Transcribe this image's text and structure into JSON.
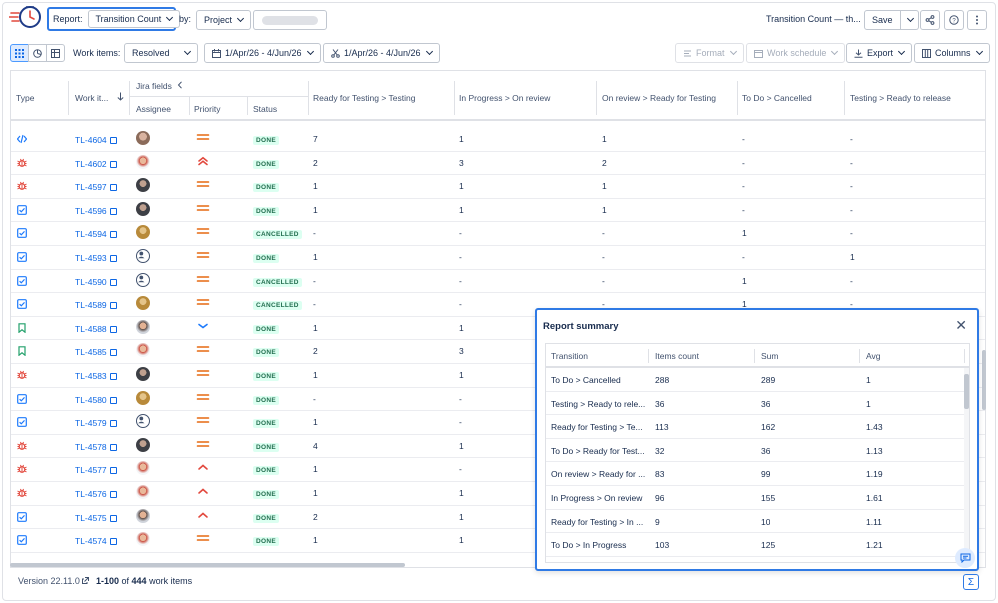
{
  "toolbar": {
    "report_label": "Report:",
    "report_value": "Transition Count",
    "by_label": "by:",
    "project_value": "Project",
    "report_title": "Transition Count — th...",
    "save_label": "Save",
    "work_items_label": "Work items:",
    "resolved_value": "Resolved",
    "date_range_1": "1/Apr/26 - 4/Jun/26",
    "date_range_2": "1/Apr/26 - 4/Jun/26",
    "format_label": "Format",
    "schedule_label": "Work schedule",
    "export_label": "Export",
    "columns_label": "Columns"
  },
  "table": {
    "headers": {
      "type": "Type",
      "work_item": "Work it...",
      "jira_fields": "Jira fields",
      "assignee": "Assignee",
      "priority": "Priority",
      "status": "Status",
      "t1": "Ready for Testing > Testing",
      "t2": "In Progress > On review",
      "t3": "On review > Ready for Testing",
      "t4": "To Do > Cancelled",
      "t5": "Testing > Ready to release"
    },
    "rows": [
      {
        "type": "code",
        "key": "TL-4604",
        "av": "p1",
        "pr": "medium",
        "status": "DONE",
        "v": [
          "7",
          "1",
          "1",
          "-",
          "-"
        ]
      },
      {
        "type": "bug",
        "key": "TL-4602",
        "av": "p2",
        "pr": "highest",
        "status": "DONE",
        "v": [
          "2",
          "3",
          "2",
          "-",
          "-"
        ]
      },
      {
        "type": "bug",
        "key": "TL-4597",
        "av": "p3",
        "pr": "medium",
        "status": "DONE",
        "v": [
          "1",
          "1",
          "1",
          "-",
          "-"
        ]
      },
      {
        "type": "task",
        "key": "TL-4596",
        "av": "p3",
        "pr": "medium",
        "status": "DONE",
        "v": [
          "1",
          "1",
          "1",
          "-",
          "-"
        ]
      },
      {
        "type": "task",
        "key": "TL-4594",
        "av": "p4",
        "pr": "medium",
        "status": "CANCELLED",
        "v": [
          "-",
          "-",
          "-",
          "1",
          "-"
        ]
      },
      {
        "type": "task",
        "key": "TL-4593",
        "av": "gen",
        "pr": "medium",
        "status": "DONE",
        "v": [
          "1",
          "-",
          "-",
          "-",
          "1"
        ]
      },
      {
        "type": "task",
        "key": "TL-4590",
        "av": "gen",
        "pr": "medium",
        "status": "CANCELLED",
        "v": [
          "-",
          "-",
          "-",
          "1",
          "-"
        ]
      },
      {
        "type": "task",
        "key": "TL-4589",
        "av": "p4",
        "pr": "medium",
        "status": "CANCELLED",
        "v": [
          "-",
          "-",
          "-",
          "1",
          "-"
        ]
      },
      {
        "type": "story",
        "key": "TL-4588",
        "av": "p5",
        "pr": "low",
        "status": "DONE",
        "v": [
          "1",
          "1",
          "",
          "",
          ""
        ]
      },
      {
        "type": "story",
        "key": "TL-4585",
        "av": "p2",
        "pr": "medium",
        "status": "DONE",
        "v": [
          "2",
          "3",
          "",
          "",
          ""
        ]
      },
      {
        "type": "bug",
        "key": "TL-4583",
        "av": "p3",
        "pr": "medium",
        "status": "DONE",
        "v": [
          "1",
          "1",
          "",
          "",
          ""
        ]
      },
      {
        "type": "task",
        "key": "TL-4580",
        "av": "p4",
        "pr": "medium",
        "status": "DONE",
        "v": [
          "-",
          "-",
          "",
          "",
          ""
        ]
      },
      {
        "type": "task",
        "key": "TL-4579",
        "av": "gen",
        "pr": "medium",
        "status": "DONE",
        "v": [
          "1",
          "-",
          "",
          "",
          ""
        ]
      },
      {
        "type": "bug",
        "key": "TL-4578",
        "av": "p3",
        "pr": "medium",
        "status": "DONE",
        "v": [
          "4",
          "1",
          "",
          "",
          ""
        ]
      },
      {
        "type": "bug",
        "key": "TL-4577",
        "av": "p2",
        "pr": "high",
        "status": "DONE",
        "v": [
          "1",
          "-",
          "",
          "",
          ""
        ]
      },
      {
        "type": "bug",
        "key": "TL-4576",
        "av": "p2",
        "pr": "high",
        "status": "DONE",
        "v": [
          "1",
          "1",
          "",
          "",
          ""
        ]
      },
      {
        "type": "task",
        "key": "TL-4575",
        "av": "p5",
        "pr": "high",
        "status": "DONE",
        "v": [
          "2",
          "1",
          "",
          "",
          ""
        ]
      },
      {
        "type": "task",
        "key": "TL-4574",
        "av": "p2",
        "pr": "medium",
        "status": "DONE",
        "v": [
          "1",
          "1",
          "",
          "",
          ""
        ]
      }
    ]
  },
  "footer": {
    "version": "Version 22.11.0",
    "count_bold": "1-100",
    "count_rest": " of ",
    "count_total": "444",
    "count_suffix": " work items"
  },
  "summary": {
    "title": "Report summary",
    "headers": [
      "Transition",
      "Items count",
      "Sum",
      "Avg"
    ],
    "rows": [
      [
        "To Do > Cancelled",
        "288",
        "289",
        "1"
      ],
      [
        "Testing > Ready to rele...",
        "36",
        "36",
        "1"
      ],
      [
        "Ready for Testing > Te...",
        "113",
        "162",
        "1.43"
      ],
      [
        "To Do > Ready for Test...",
        "32",
        "36",
        "1.13"
      ],
      [
        "On review > Ready for ...",
        "83",
        "99",
        "1.19"
      ],
      [
        "In Progress > On review",
        "96",
        "155",
        "1.61"
      ],
      [
        "Ready for Testing > In ...",
        "9",
        "10",
        "1.11"
      ],
      [
        "To Do > In Progress",
        "103",
        "125",
        "1.21"
      ]
    ]
  },
  "colors": {
    "accent": "#2f7ae5",
    "link": "#0c66e4",
    "bug": "#e2483d",
    "task": "#1d7afc",
    "story": "#22a06b",
    "priority_medium": "#e56910",
    "priority_low": "#1d7afc"
  }
}
